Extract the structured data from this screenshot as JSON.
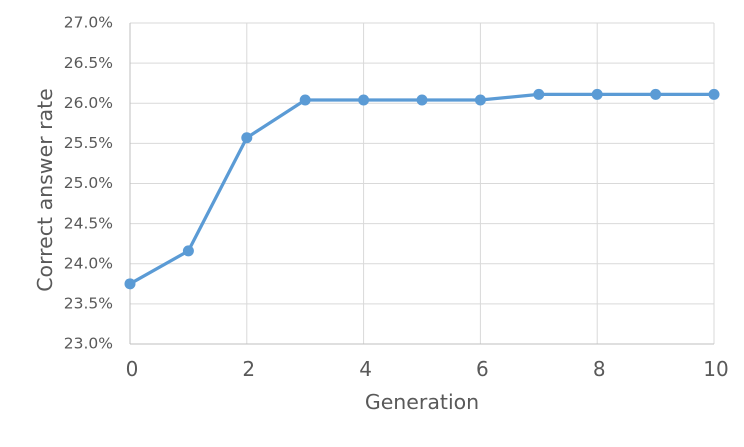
{
  "chart_data": {
    "type": "line",
    "title": "",
    "xlabel": "Generation",
    "ylabel": "Correct answer rate",
    "x": [
      0,
      1,
      2,
      3,
      4,
      5,
      6,
      7,
      8,
      9,
      10
    ],
    "series": [
      {
        "name": "Correct answer rate",
        "values": [
          23.75,
          24.16,
          25.57,
          26.04,
          26.04,
          26.04,
          26.04,
          26.11,
          26.11,
          26.11,
          26.11
        ],
        "color": "#5B9BD5",
        "marker": "circle"
      }
    ],
    "xlim": [
      0,
      10
    ],
    "ylim": [
      23.0,
      27.0
    ],
    "xticks": [
      0,
      2,
      4,
      6,
      8,
      10
    ],
    "xtick_labels": [
      "0",
      "2",
      "4",
      "6",
      "8",
      "10"
    ],
    "yticks": [
      23.0,
      23.5,
      24.0,
      24.5,
      25.0,
      25.5,
      26.0,
      26.5,
      27.0
    ],
    "ytick_labels": [
      "23.0%",
      "23.5%",
      "24.0%",
      "24.5%",
      "25.0%",
      "25.5%",
      "26.0%",
      "26.5%",
      "27.0%"
    ],
    "grid": true,
    "legend": "none",
    "colors": {
      "line": "#5B9BD5",
      "gridline": "#D9D9D9",
      "axis_line": "#BFBFBF",
      "tick_text": "#595959",
      "title_text": "#595959",
      "background": "#FFFFFF"
    }
  }
}
